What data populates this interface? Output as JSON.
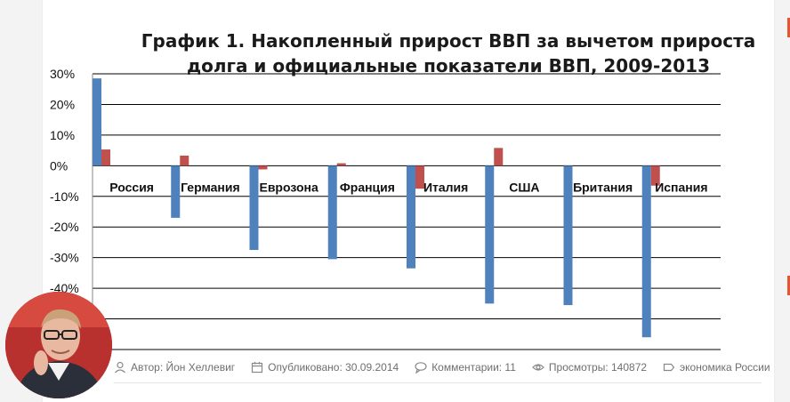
{
  "chart_data": {
    "type": "bar",
    "title_line1": "График 1. Накопленный прирост ВВП за вычетом прироста",
    "title_line2": "долга и официальные показатели ВВП, 2009-2013",
    "categories": [
      "Россия",
      "Германия",
      "Еврозона",
      "Франция",
      "Италия",
      "США",
      "Британия",
      "Испания"
    ],
    "series": [
      {
        "values": [
          28.5,
          -17,
          -27.5,
          -30.5,
          -33.5,
          -45,
          -45.5,
          -56
        ],
        "color": "#4f81bd"
      },
      {
        "values": [
          5.3,
          3.3,
          -1.2,
          0.8,
          -7.5,
          5.8,
          0,
          -6.5
        ],
        "color": "#c0504d"
      }
    ],
    "ylim": [
      -60,
      30
    ],
    "yticks": [
      30,
      20,
      10,
      0,
      -10,
      -20,
      -30,
      -40
    ],
    "ytick_labels": [
      "30%",
      "20%",
      "10%",
      "0%",
      "-10%",
      "-20%",
      "-30%",
      "-40%"
    ],
    "grid": true
  },
  "meta": {
    "author": "Автор: Йон Хеллевиг",
    "published": "Опубликовано: 30.09.2014",
    "comments": "Комментарии: 11",
    "views": "Просмотры: 140872",
    "tag": "экономика России"
  },
  "colors": {
    "accent": "#e4572e",
    "blue": "#4f81bd",
    "red": "#c0504d"
  }
}
